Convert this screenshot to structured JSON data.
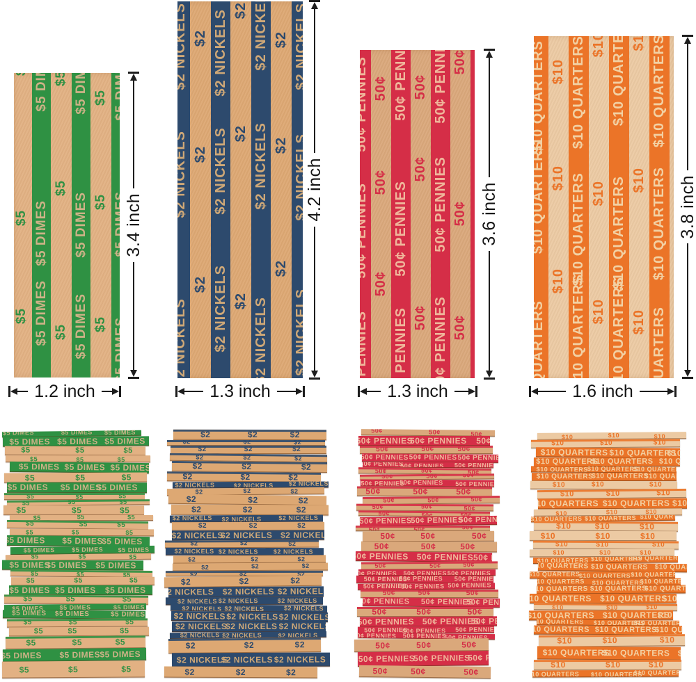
{
  "products": [
    {
      "id": "dimes",
      "band_label": "$5 DIMES",
      "denomination_label": "$5",
      "height_label": "3.4 inch",
      "width_label": "1.2 inch",
      "colors": {
        "band": "#2f9143",
        "paper": "#e2b183",
        "band_text": "#cdb287"
      }
    },
    {
      "id": "nickels",
      "band_label": "$2 NICKELS",
      "denomination_label": "$2",
      "height_label": "4.2 inch",
      "width_label": "1.3 inch",
      "colors": {
        "band": "#2d4a6d",
        "paper": "#dda873",
        "band_text": "#cfa877"
      }
    },
    {
      "id": "pennies",
      "band_label": "50¢ PENNIES",
      "denomination_label": "50¢",
      "height_label": "3.6 inch",
      "width_label": "1.3 inch",
      "colors": {
        "band": "#d52e47",
        "paper": "#daa87b",
        "band_text": "#efb79b"
      }
    },
    {
      "id": "quarters",
      "band_label": "$10 QUARTERS",
      "denomination_label": "$10",
      "height_label": "3.8 inch",
      "width_label": "1.6 inch",
      "colors": {
        "band": "#eb7428",
        "paper": "#eccaa3",
        "band_text": "#f2d1a4"
      }
    }
  ]
}
